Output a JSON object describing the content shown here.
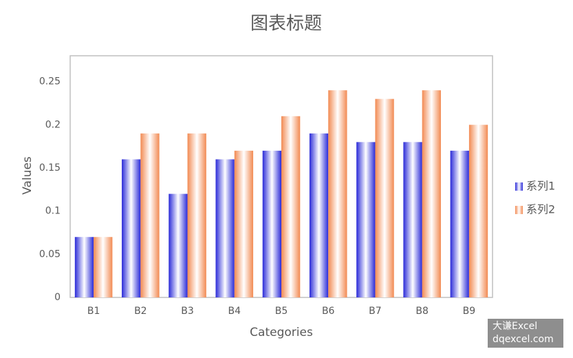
{
  "chart_data": {
    "type": "bar",
    "title": "图表标题",
    "x_label": "Categories",
    "y_label": "Values",
    "categories": [
      "B1",
      "B2",
      "B3",
      "B4",
      "B5",
      "B6",
      "B7",
      "B8",
      "B9"
    ],
    "series": [
      {
        "name": "系列1",
        "color": "#2a2ad8",
        "values": [
          0.07,
          0.16,
          0.12,
          0.16,
          0.17,
          0.19,
          0.18,
          0.18,
          0.17
        ]
      },
      {
        "name": "系列2",
        "color": "#f28a52",
        "values": [
          0.07,
          0.19,
          0.19,
          0.17,
          0.21,
          0.24,
          0.23,
          0.24,
          0.2
        ]
      }
    ],
    "ylim": [
      0,
      0.28
    ],
    "yticks": [
      0,
      0.05,
      0.1,
      0.15,
      0.2,
      0.25
    ],
    "grid": false,
    "legend": "right",
    "watermark": [
      "大谦Excel",
      "dqexcel.com"
    ]
  }
}
